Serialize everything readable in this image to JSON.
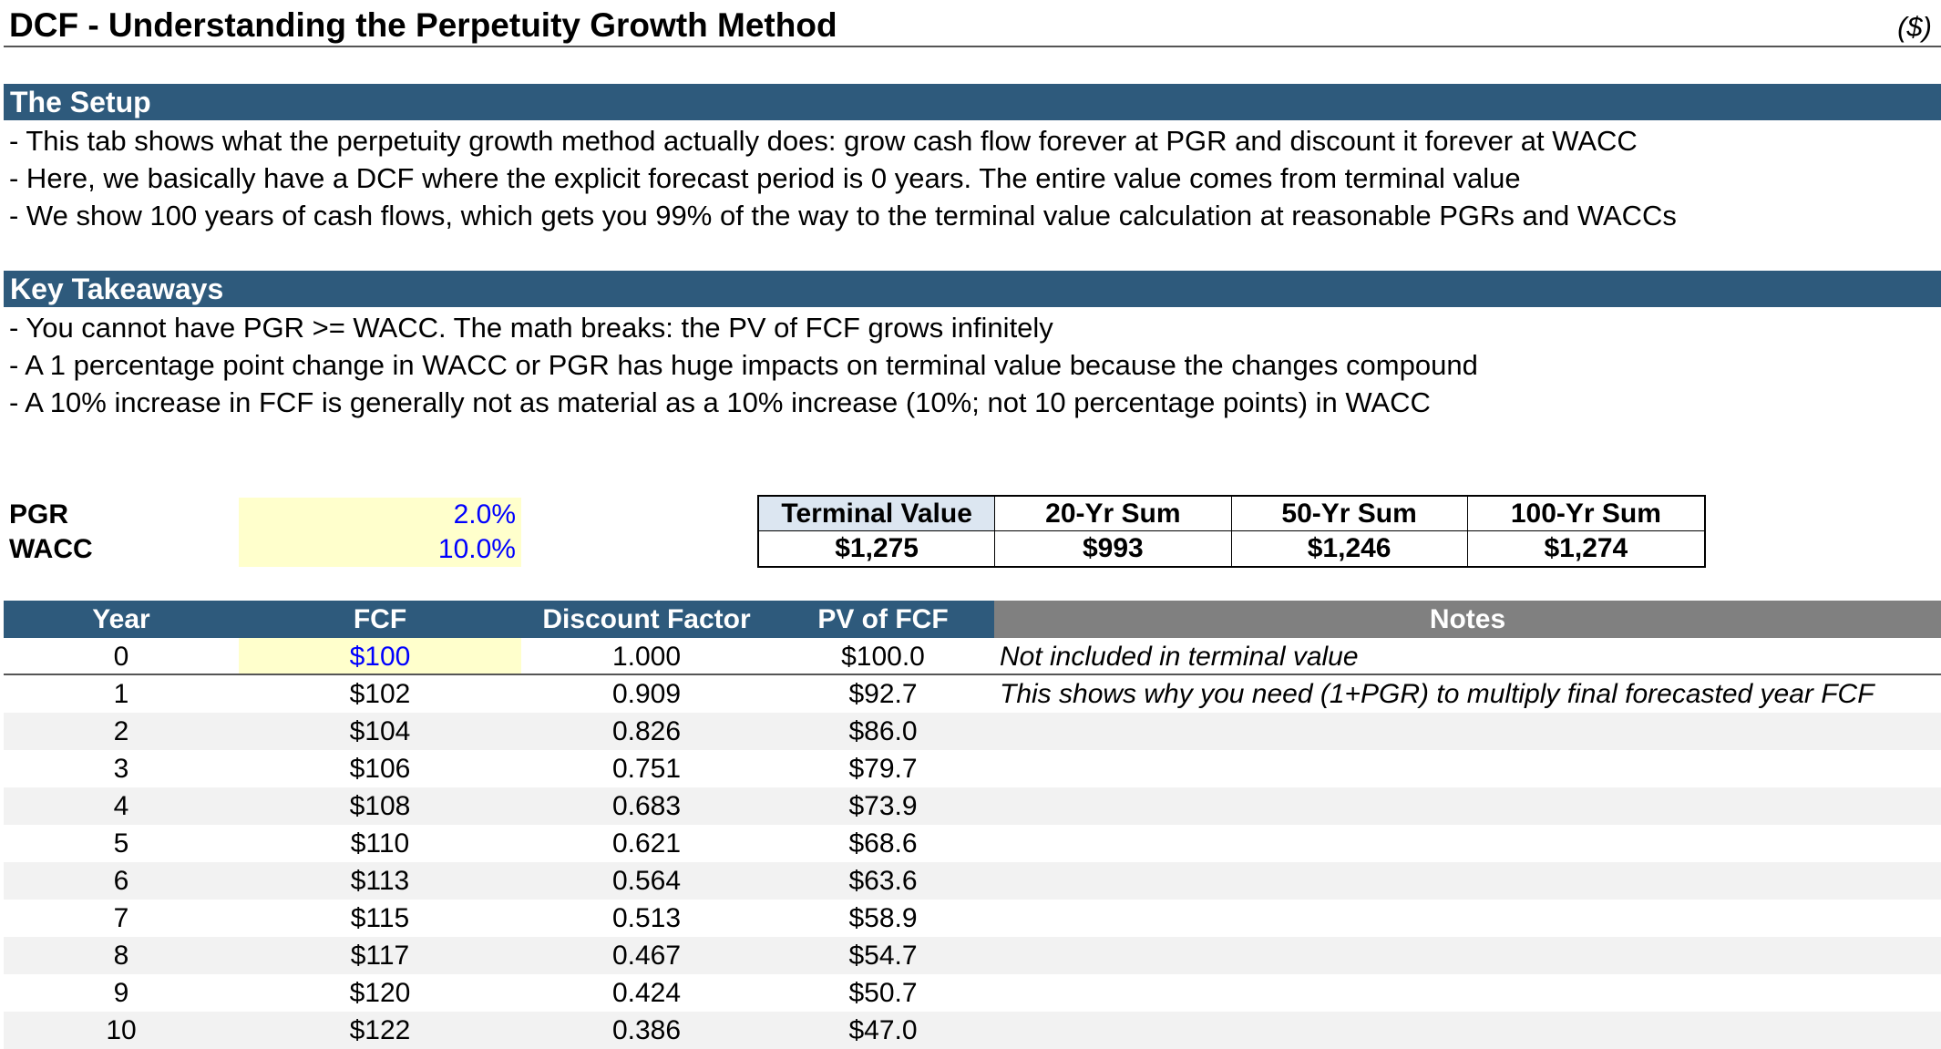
{
  "header": {
    "title": "DCF - Understanding the Perpetuity Growth Method",
    "units": "($)"
  },
  "setup": {
    "title": "The Setup",
    "lines": [
      "- This tab shows what the perpetuity growth method actually does: grow cash flow forever at PGR and discount it forever at WACC",
      "- Here, we basically have a DCF where the explicit forecast period is 0 years. The entire value comes from terminal value",
      "- We show 100 years of cash flows, which gets you 99% of the way to the terminal value calculation at reasonable PGRs and WACCs"
    ]
  },
  "takeaways": {
    "title": "Key Takeaways",
    "lines": [
      "- You cannot have PGR >= WACC. The math breaks: the PV of FCF grows infinitely",
      "- A 1 percentage point change in WACC or PGR has huge impacts on terminal value because the changes compound",
      "- A 10% increase in FCF is generally not as material as a 10% increase (10%; not 10 percentage points) in WACC"
    ]
  },
  "inputs": {
    "pgr": {
      "label": "PGR",
      "value": "2.0%"
    },
    "wacc": {
      "label": "WACC",
      "value": "10.0%"
    }
  },
  "summary": {
    "headers": [
      "Terminal Value",
      "20-Yr Sum",
      "50-Yr Sum",
      "100-Yr Sum"
    ],
    "values": [
      "$1,275",
      "$993",
      "$1,246",
      "$1,274"
    ]
  },
  "table": {
    "headers": {
      "year": "Year",
      "fcf": "FCF",
      "df": "Discount Factor",
      "pv": "PV of FCF",
      "notes": "Notes"
    },
    "rows": [
      {
        "year": "0",
        "fcf": "$100",
        "df": "1.000",
        "pv": "$100.0",
        "note": "Not included in terminal value"
      },
      {
        "year": "1",
        "fcf": "$102",
        "df": "0.909",
        "pv": "$92.7",
        "note": "This shows why you need (1+PGR) to multiply final forecasted year FCF"
      },
      {
        "year": "2",
        "fcf": "$104",
        "df": "0.826",
        "pv": "$86.0",
        "note": ""
      },
      {
        "year": "3",
        "fcf": "$106",
        "df": "0.751",
        "pv": "$79.7",
        "note": ""
      },
      {
        "year": "4",
        "fcf": "$108",
        "df": "0.683",
        "pv": "$73.9",
        "note": ""
      },
      {
        "year": "5",
        "fcf": "$110",
        "df": "0.621",
        "pv": "$68.6",
        "note": ""
      },
      {
        "year": "6",
        "fcf": "$113",
        "df": "0.564",
        "pv": "$63.6",
        "note": ""
      },
      {
        "year": "7",
        "fcf": "$115",
        "df": "0.513",
        "pv": "$58.9",
        "note": ""
      },
      {
        "year": "8",
        "fcf": "$117",
        "df": "0.467",
        "pv": "$54.7",
        "note": ""
      },
      {
        "year": "9",
        "fcf": "$120",
        "df": "0.424",
        "pv": "$50.7",
        "note": ""
      },
      {
        "year": "10",
        "fcf": "$122",
        "df": "0.386",
        "pv": "$47.0",
        "note": ""
      }
    ]
  },
  "colors": {
    "header_bar": "#2e5a7c",
    "notes_header": "#808080",
    "input_fill": "#ffffcc",
    "input_text": "#0000ff",
    "row_shade": "#f2f2f2"
  }
}
